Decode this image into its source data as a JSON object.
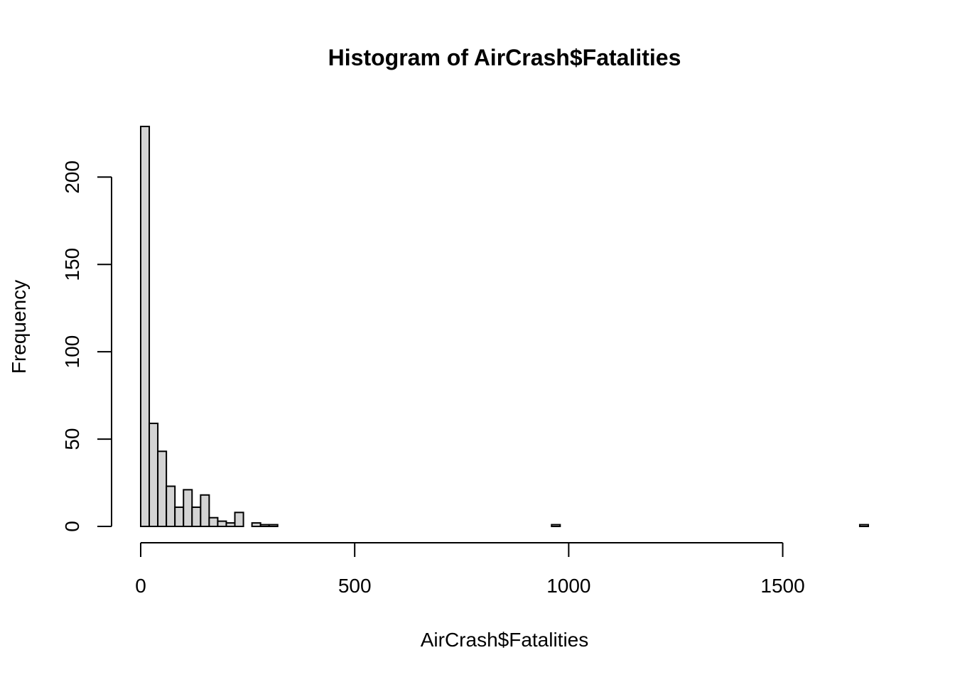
{
  "chart_data": {
    "type": "bar",
    "title": "Histogram of AirCrash$Fatalities",
    "xlabel": "AirCrash$Fatalities",
    "ylabel": "Frequency",
    "bin_width": 20,
    "x_start": 0,
    "values": [
      229,
      59,
      43,
      23,
      11,
      21,
      11,
      18,
      5,
      3,
      2,
      8,
      0,
      2,
      1,
      1,
      0,
      0,
      0,
      0,
      0,
      0,
      0,
      0,
      0,
      0,
      0,
      0,
      0,
      0,
      0,
      0,
      0,
      0,
      0,
      0,
      0,
      0,
      0,
      0,
      0,
      0,
      0,
      0,
      0,
      0,
      0,
      0,
      1,
      0,
      0,
      0,
      0,
      0,
      0,
      0,
      0,
      0,
      0,
      0,
      0,
      0,
      0,
      0,
      0,
      0,
      0,
      0,
      0,
      0,
      0,
      0,
      0,
      0,
      0,
      0,
      0,
      0,
      0,
      0,
      0,
      0,
      0,
      0,
      1
    ],
    "x_ticks": [
      0,
      500,
      1000,
      1500
    ],
    "y_ticks": [
      0,
      50,
      100,
      150,
      200
    ],
    "xlim": [
      0,
      1700
    ],
    "ylim": [
      0,
      229
    ],
    "bar_color": "#d3d3d3",
    "grid": false
  }
}
